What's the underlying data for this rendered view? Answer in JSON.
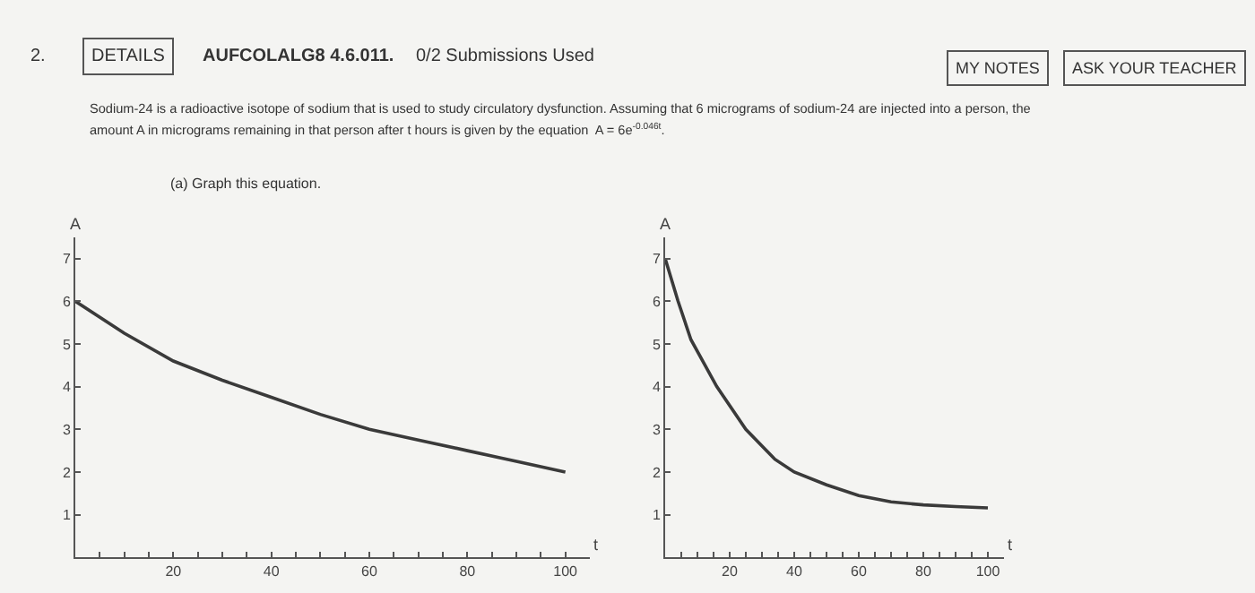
{
  "chart_data": [
    {
      "type": "line",
      "xlabel": "t",
      "ylabel": "A",
      "annotations": [
        "2.",
        "DETAILS",
        "AUFCOLALG8 4.6.011.",
        "0/2 Submissions Used",
        "MY NOTES",
        "ASK YOUR TEACHER",
        "Sodium-24 is a radioactive isotope of sodium that is used to study circulatory dysfunction. Assuming that 6 micrograms of sodium-24 are injected into a person, the",
        "amount A in micrograms remaining in that person after t hours is given by the equation  A = 6e$^{-0.046t}$.",
        "(a) Graph this equation."
      ],
      "x": [
        0,
        10,
        20,
        30,
        40,
        50,
        60,
        70,
        80,
        90,
        100
      ],
      "series": [
        {
          "color": "#3a3a3a",
          "values": [
            6.0,
            5.25,
            4.6,
            4.15,
            3.75,
            3.35,
            3.0,
            2.75,
            2.5,
            2.25,
            2.0
          ]
        }
      ],
      "xlim": [
        0,
        105
      ],
      "ylim": [
        0,
        7.5
      ],
      "xticks": [
        {
          "value": 5,
          "label": null
        },
        {
          "value": 10,
          "label": null
        },
        {
          "value": 15,
          "label": null
        },
        20,
        {
          "value": 25,
          "label": null
        },
        {
          "value": 30,
          "label": null
        },
        {
          "value": 35,
          "label": null
        },
        40,
        {
          "value": 45,
          "label": null
        },
        {
          "value": 50,
          "label": null
        },
        {
          "value": 55,
          "label": null
        },
        60,
        {
          "value": 65,
          "label": null
        },
        {
          "value": 70,
          "label": null
        },
        {
          "value": 75,
          "label": null
        },
        80,
        {
          "value": 85,
          "label": null
        },
        {
          "value": 90,
          "label": null
        },
        {
          "value": 95,
          "label": null
        },
        100
      ],
      "yticks": [
        1,
        2,
        3,
        4,
        5,
        6,
        7
      ],
      "grid": false,
      "marker": "none",
      "line_style": "solid"
    },
    {
      "type": "line",
      "xlabel": "t",
      "ylabel": "A",
      "x": [
        0,
        4,
        8,
        16,
        25,
        34,
        40,
        50,
        60,
        70,
        80,
        90,
        100
      ],
      "series": [
        {
          "color": "#3a3a3a",
          "values": [
            7.0,
            6.0,
            5.1,
            4.0,
            3.0,
            2.3,
            2.0,
            1.7,
            1.45,
            1.3,
            1.23,
            1.19,
            1.16
          ]
        }
      ],
      "xlim": [
        0,
        105
      ],
      "ylim": [
        0,
        7.5
      ],
      "xticks": [
        {
          "value": 5,
          "label": null
        },
        {
          "value": 10,
          "label": null
        },
        {
          "value": 15,
          "label": null
        },
        20,
        {
          "value": 25,
          "label": null
        },
        {
          "value": 30,
          "label": null
        },
        {
          "value": 35,
          "label": null
        },
        40,
        {
          "value": 45,
          "label": null
        },
        {
          "value": 50,
          "label": null
        },
        {
          "value": 55,
          "label": null
        },
        60,
        {
          "value": 65,
          "label": null
        },
        {
          "value": 70,
          "label": null
        },
        {
          "value": 75,
          "label": null
        },
        80,
        {
          "value": 85,
          "label": null
        },
        {
          "value": 90,
          "label": null
        },
        {
          "value": 95,
          "label": null
        },
        100
      ],
      "yticks": [
        1,
        2,
        3,
        4,
        5,
        6,
        7
      ],
      "grid": false,
      "marker": "none",
      "line_style": "solid"
    }
  ]
}
